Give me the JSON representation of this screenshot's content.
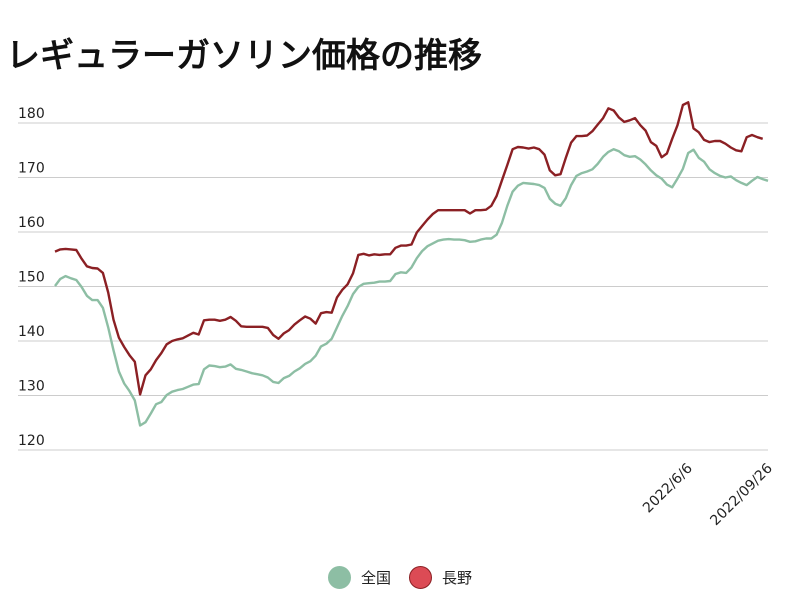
{
  "chart_data": {
    "type": "line",
    "title": "レギュラーガソリン価格の推移",
    "xlabel": "",
    "ylabel": "",
    "ylim": [
      118,
      186
    ],
    "yticks": [
      120,
      130,
      140,
      150,
      160,
      170,
      180
    ],
    "x_tick_labels": [
      "2022/6/6",
      "2022/09/26"
    ],
    "grid": true,
    "legend_position": "bottom",
    "series": [
      {
        "name": "全国",
        "color": "#8dbea4",
        "values": [
          150.1,
          151.4,
          151.9,
          151.5,
          151.2,
          149.9,
          148.3,
          147.5,
          147.5,
          146.1,
          142.5,
          138.3,
          134.4,
          132.2,
          130.8,
          129.1,
          124.5,
          125.1,
          126.7,
          128.4,
          128.8,
          130.1,
          130.7,
          131.0,
          131.2,
          131.6,
          132.0,
          132.1,
          134.8,
          135.5,
          135.4,
          135.2,
          135.3,
          135.7,
          134.9,
          134.7,
          134.4,
          134.1,
          133.9,
          133.7,
          133.3,
          132.5,
          132.3,
          133.2,
          133.6,
          134.4,
          135.0,
          135.8,
          136.3,
          137.3,
          139.0,
          139.5,
          140.4,
          142.5,
          144.6,
          146.4,
          148.6,
          149.9,
          150.5,
          150.6,
          150.7,
          150.9,
          150.9,
          151.0,
          152.3,
          152.6,
          152.5,
          153.5,
          155.2,
          156.5,
          157.4,
          157.9,
          158.4,
          158.6,
          158.7,
          158.6,
          158.6,
          158.5,
          158.2,
          158.3,
          158.6,
          158.8,
          158.8,
          159.5,
          161.7,
          164.8,
          167.4,
          168.5,
          169.0,
          168.9,
          168.8,
          168.6,
          168.1,
          166.1,
          165.2,
          164.8,
          166.2,
          168.6,
          170.3,
          170.8,
          171.1,
          171.5,
          172.5,
          173.8,
          174.7,
          175.2,
          174.8,
          174.1,
          173.8,
          173.9,
          173.3,
          172.4,
          171.3,
          170.4,
          169.8,
          168.7,
          168.2,
          169.8,
          171.6,
          174.5,
          175.1,
          173.6,
          172.9,
          171.5,
          170.8,
          170.3,
          170.0,
          170.2,
          169.5,
          169.0,
          168.6,
          169.4,
          170.1,
          169.7,
          169.4
        ]
      },
      {
        "name": "長野",
        "color": "#8b2024",
        "values": [
          156.4,
          156.8,
          156.9,
          156.8,
          156.7,
          155.1,
          153.7,
          153.4,
          153.3,
          152.5,
          148.9,
          143.9,
          140.6,
          138.9,
          137.4,
          136.2,
          130.2,
          133.7,
          134.8,
          136.5,
          137.8,
          139.4,
          140.0,
          140.3,
          140.5,
          141.0,
          141.5,
          141.2,
          143.8,
          143.9,
          143.9,
          143.7,
          143.9,
          144.4,
          143.7,
          142.7,
          142.6,
          142.6,
          142.6,
          142.6,
          142.4,
          141.1,
          140.4,
          141.4,
          142.0,
          143.0,
          143.8,
          144.5,
          144.1,
          143.2,
          145.1,
          145.3,
          145.2,
          148.0,
          149.4,
          150.4,
          152.4,
          155.8,
          156.0,
          155.7,
          155.9,
          155.8,
          155.9,
          155.9,
          157.1,
          157.5,
          157.5,
          157.7,
          159.9,
          161.1,
          162.3,
          163.3,
          164.0,
          164.0,
          164.0,
          164.0,
          164.0,
          164.0,
          163.4,
          164.0,
          164.0,
          164.1,
          164.8,
          166.6,
          169.5,
          172.3,
          175.2,
          175.6,
          175.5,
          175.3,
          175.5,
          175.2,
          174.2,
          171.3,
          170.4,
          170.6,
          173.6,
          176.4,
          177.6,
          177.6,
          177.7,
          178.5,
          179.7,
          180.9,
          182.7,
          182.3,
          181.0,
          180.2,
          180.5,
          180.9,
          179.6,
          178.6,
          176.5,
          175.8,
          173.7,
          174.4,
          177.1,
          179.6,
          183.3,
          183.8,
          179.0,
          178.3,
          176.9,
          176.5,
          176.7,
          176.7,
          176.2,
          175.5,
          175.0,
          174.8,
          177.4,
          177.8,
          177.4,
          177.1
        ]
      }
    ]
  }
}
